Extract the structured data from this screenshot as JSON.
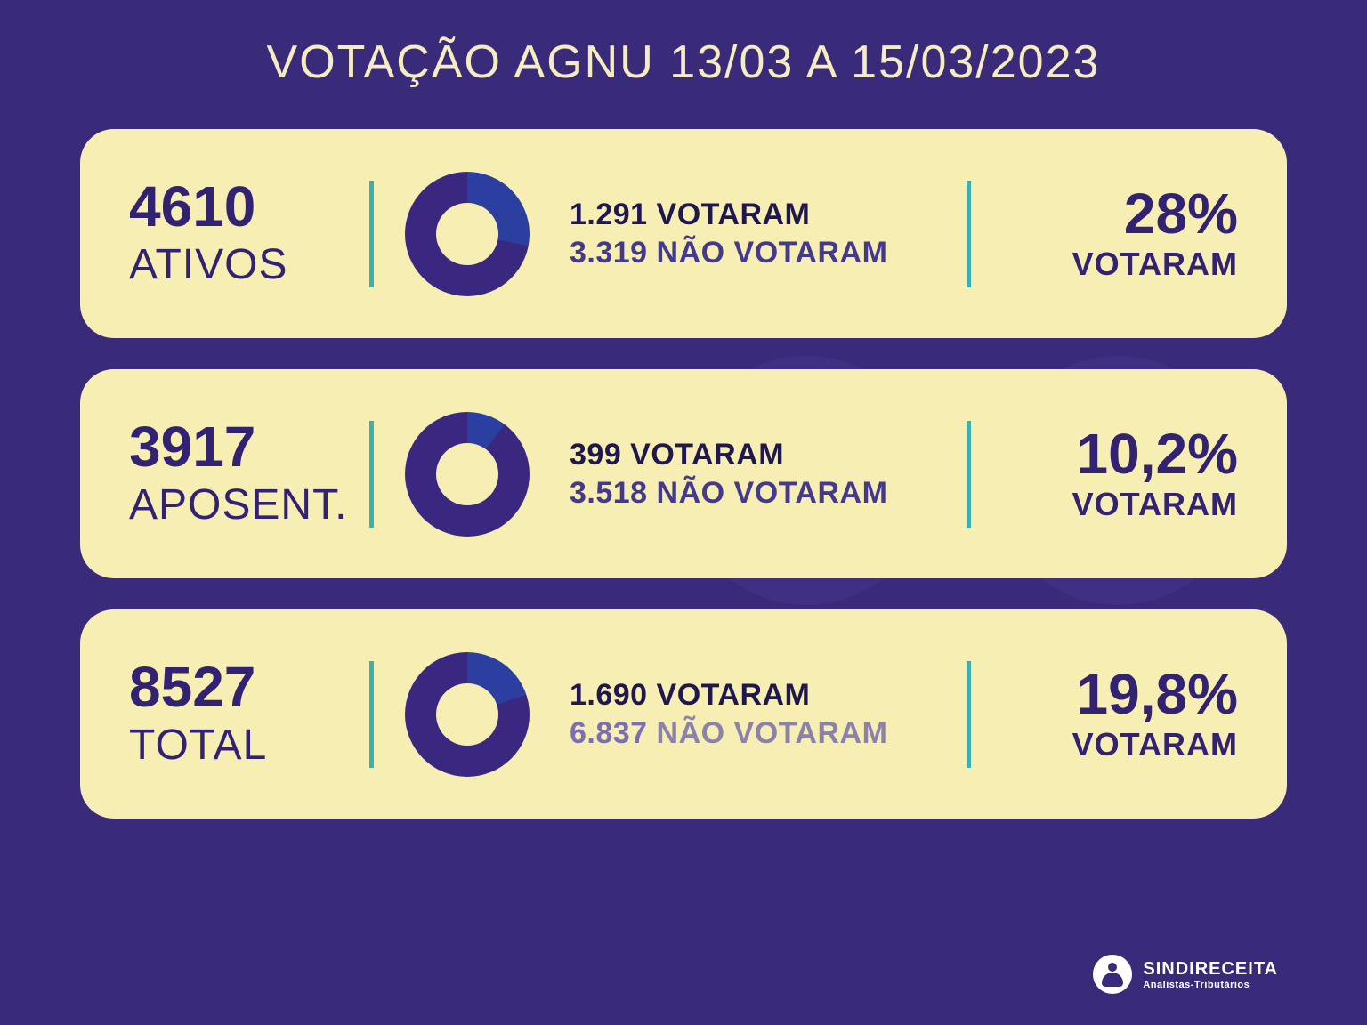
{
  "title": "VOTAÇÃO AGNU 13/03 A 15/03/2023",
  "colors": {
    "page_bg": "#3a2a7a",
    "card_bg": "#f7eeb4",
    "title_text": "#f5edc0",
    "primary_text": "#312272",
    "dark_text": "#1f1850",
    "divider": "#3fb0b0",
    "donut_voted": "#2b3fa0",
    "donut_notvoted": "#3a2880",
    "bg_circle": "#4c3c95"
  },
  "cards": [
    {
      "total_number": "4610",
      "total_label": "ATIVOS",
      "donut": {
        "voted_pct": 28,
        "voted_color": "#2b3fa0",
        "notvoted_color": "#3a2880",
        "thickness_ratio": 0.5
      },
      "voted_line": "1.291 VOTARAM",
      "notvoted_number": "3.319",
      "notvoted_text": " NÃO VOTARAM",
      "notvoted_number_color": "#433a8f",
      "notvoted_text_color": "#433a8f",
      "pct_value": "28%",
      "pct_label": "VOTARAM"
    },
    {
      "total_number": "3917",
      "total_label": "APOSENT.",
      "donut": {
        "voted_pct": 10.2,
        "voted_color": "#2b3fa0",
        "notvoted_color": "#3a2880",
        "thickness_ratio": 0.5
      },
      "voted_line": "399 VOTARAM",
      "notvoted_number": "3.518",
      "notvoted_text": " NÃO VOTARAM",
      "notvoted_number_color": "#433a8f",
      "notvoted_text_color": "#433a8f",
      "pct_value": "10,2%",
      "pct_label": "VOTARAM"
    },
    {
      "total_number": "8527",
      "total_label": "TOTAL",
      "donut": {
        "voted_pct": 19.8,
        "voted_color": "#2b3fa0",
        "notvoted_color": "#3a2880",
        "thickness_ratio": 0.5
      },
      "voted_line": "1.690 VOTARAM",
      "notvoted_number": "6.837",
      "notvoted_text": " NÃO VOTARAM",
      "notvoted_number_color": "#7a6fb5",
      "notvoted_text_color": "#8a82a8",
      "pct_value": "19,8%",
      "pct_label": "VOTARAM"
    }
  ],
  "logo": {
    "brand": "SINDIRECEITA",
    "sub": "Analistas-Tributários"
  }
}
